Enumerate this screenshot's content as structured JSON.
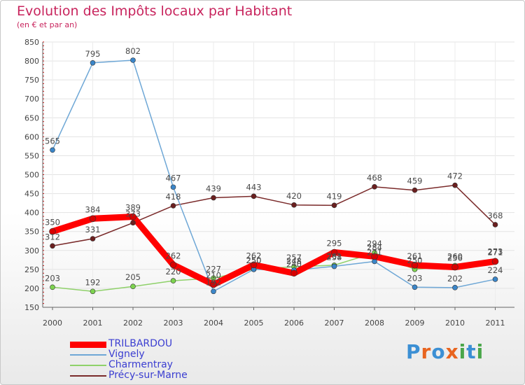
{
  "chart_data": {
    "type": "line",
    "title": "Evolution des Impôts locaux par Habitant",
    "subtitle": "(en € et par an)",
    "xlabel": "",
    "ylabel": "",
    "ylim": [
      150,
      850
    ],
    "yticks": [
      150,
      200,
      250,
      300,
      350,
      400,
      450,
      500,
      550,
      600,
      650,
      700,
      750,
      800,
      850
    ],
    "categories": [
      "2000",
      "2001",
      "2002",
      "2003",
      "2004",
      "2005",
      "2006",
      "2007",
      "2008",
      "2009",
      "2010",
      "2011"
    ],
    "grid": true,
    "legend_position": "bottom-left",
    "series": [
      {
        "name": "TRILBARDOU",
        "color": "#ff0000",
        "marker_color": "#d80000",
        "values": [
          350,
          384,
          389,
          262,
          210,
          262,
          240,
          295,
          284,
          261,
          256,
          271
        ]
      },
      {
        "name": "Vignely",
        "color": "#6ea7d6",
        "marker_color": "#3b86c9",
        "values": [
          565,
          795,
          802,
          467,
          192,
          250,
          248,
          258,
          271,
          203,
          202,
          224
        ]
      },
      {
        "name": "Charmentray",
        "color": "#8fd16a",
        "marker_color": "#7dd34f",
        "values": [
          203,
          192,
          205,
          220,
          227,
          250,
          257,
          261,
          294,
          250,
          260,
          273
        ]
      },
      {
        "name": "Précy-sur-Marne",
        "color": "#7a2a2a",
        "marker_color": "#6b1f1f",
        "values": [
          312,
          331,
          373,
          418,
          439,
          443,
          420,
          419,
          468,
          459,
          472,
          368
        ]
      }
    ]
  },
  "logo": {
    "text": "Proxiti",
    "letters": [
      "P",
      "r",
      "o",
      "x",
      "i",
      "t",
      "i"
    ],
    "colors": [
      "#3b8fd4",
      "#e8641f",
      "#3b8fd4",
      "#e8641f",
      "#4aa64a",
      "#3b8fd4",
      "#4aa64a"
    ]
  }
}
